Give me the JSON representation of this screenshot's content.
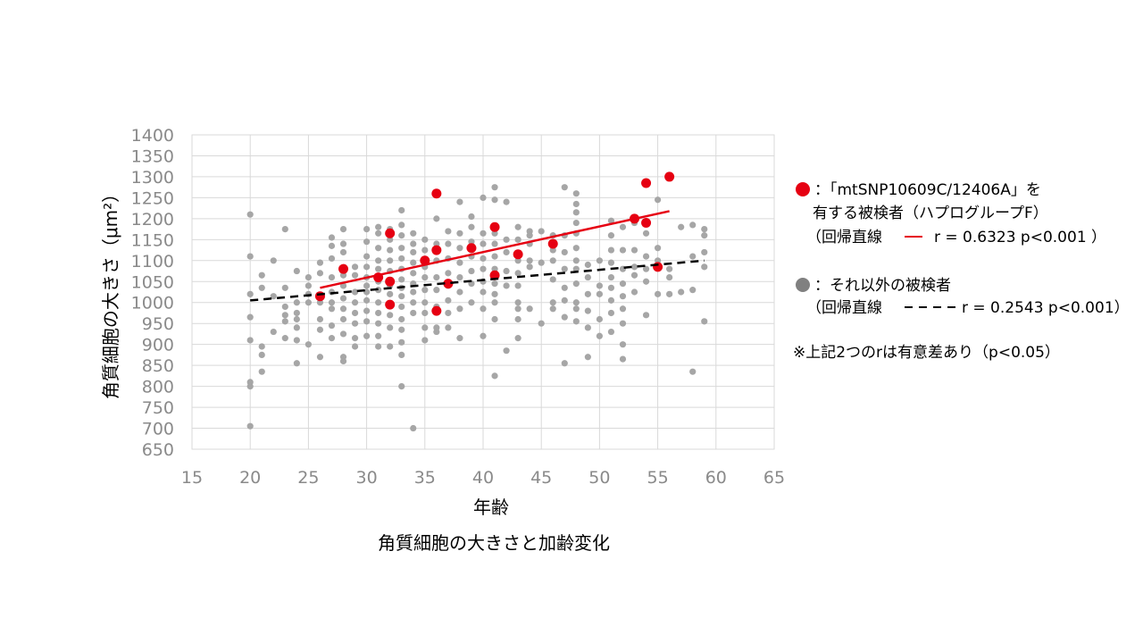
{
  "chart_data": {
    "type": "scatter",
    "title": "",
    "caption": "角質細胞の大きさと加齢変化",
    "xlabel": "年齢",
    "ylabel": "角質細胞の大きさ（μm²）",
    "xlim": [
      15,
      65
    ],
    "ylim": [
      650,
      1400
    ],
    "x_ticks": [
      15,
      20,
      25,
      30,
      35,
      40,
      45,
      50,
      55,
      60,
      65
    ],
    "y_ticks": [
      650,
      700,
      750,
      800,
      850,
      900,
      950,
      1000,
      1050,
      1100,
      1150,
      1200,
      1250,
      1300,
      1350,
      1400
    ],
    "grid": true,
    "legend_position": "right",
    "colors": {
      "red": "#e60012",
      "gray": "#a6a6a6",
      "trend_gray": "#000000",
      "tick_text": "#8a8a8a"
    },
    "series": [
      {
        "name": "「mtSNP10609C/12406A」を有する被検者（ハプログループF）",
        "color": "#e60012",
        "points": [
          [
            26,
            1015
          ],
          [
            28,
            1080
          ],
          [
            31,
            1060
          ],
          [
            32,
            1165
          ],
          [
            32,
            1050
          ],
          [
            32,
            995
          ],
          [
            35,
            1100
          ],
          [
            36,
            1260
          ],
          [
            36,
            1125
          ],
          [
            36,
            980
          ],
          [
            37,
            1045
          ],
          [
            39,
            1130
          ],
          [
            41,
            1180
          ],
          [
            41,
            1065
          ],
          [
            43,
            1115
          ],
          [
            46,
            1140
          ],
          [
            53,
            1200
          ],
          [
            54,
            1285
          ],
          [
            54,
            1190
          ],
          [
            55,
            1085
          ],
          [
            56,
            1300
          ]
        ],
        "regression": {
          "x": [
            26,
            56
          ],
          "y": [
            1035,
            1218
          ],
          "style": "solid",
          "r": 0.6323,
          "p": "<0.001"
        }
      },
      {
        "name": "それ以外の被検者",
        "color": "#a6a6a6",
        "points": [
          [
            20,
            1210
          ],
          [
            20,
            1110
          ],
          [
            20,
            1020
          ],
          [
            20,
            965
          ],
          [
            20,
            910
          ],
          [
            20,
            810
          ],
          [
            20,
            800
          ],
          [
            20,
            705
          ],
          [
            21,
            1065
          ],
          [
            21,
            1035
          ],
          [
            21,
            895
          ],
          [
            21,
            875
          ],
          [
            21,
            835
          ],
          [
            22,
            1100
          ],
          [
            22,
            1015
          ],
          [
            22,
            930
          ],
          [
            23,
            1175
          ],
          [
            23,
            1035
          ],
          [
            23,
            990
          ],
          [
            23,
            970
          ],
          [
            23,
            955
          ],
          [
            23,
            915
          ],
          [
            24,
            1075
          ],
          [
            24,
            1000
          ],
          [
            24,
            975
          ],
          [
            24,
            960
          ],
          [
            24,
            940
          ],
          [
            24,
            910
          ],
          [
            24,
            855
          ],
          [
            25,
            1060
          ],
          [
            25,
            1040
          ],
          [
            25,
            1020
          ],
          [
            25,
            1000
          ],
          [
            25,
            900
          ],
          [
            26,
            1095
          ],
          [
            26,
            1070
          ],
          [
            26,
            1000
          ],
          [
            26,
            960
          ],
          [
            26,
            935
          ],
          [
            26,
            870
          ],
          [
            27,
            1155
          ],
          [
            27,
            1135
          ],
          [
            27,
            1105
          ],
          [
            27,
            1060
          ],
          [
            27,
            1025
          ],
          [
            27,
            1000
          ],
          [
            27,
            985
          ],
          [
            27,
            945
          ],
          [
            27,
            915
          ],
          [
            28,
            1175
          ],
          [
            28,
            1140
          ],
          [
            28,
            1120
          ],
          [
            28,
            1065
          ],
          [
            28,
            1040
          ],
          [
            28,
            1010
          ],
          [
            28,
            985
          ],
          [
            28,
            960
          ],
          [
            28,
            925
          ],
          [
            28,
            870
          ],
          [
            28,
            860
          ],
          [
            29,
            1085
          ],
          [
            29,
            1065
          ],
          [
            29,
            1025
          ],
          [
            29,
            1000
          ],
          [
            29,
            975
          ],
          [
            29,
            950
          ],
          [
            29,
            915
          ],
          [
            29,
            895
          ],
          [
            30,
            1175
          ],
          [
            30,
            1145
          ],
          [
            30,
            1110
          ],
          [
            30,
            1085
          ],
          [
            30,
            1060
          ],
          [
            30,
            1040
          ],
          [
            30,
            1025
          ],
          [
            30,
            1005
          ],
          [
            30,
            980
          ],
          [
            30,
            955
          ],
          [
            30,
            920
          ],
          [
            31,
            1180
          ],
          [
            31,
            1165
          ],
          [
            31,
            1130
          ],
          [
            31,
            1100
          ],
          [
            31,
            1080
          ],
          [
            31,
            1050
          ],
          [
            31,
            1030
          ],
          [
            31,
            1000
          ],
          [
            31,
            975
          ],
          [
            31,
            950
          ],
          [
            31,
            920
          ],
          [
            31,
            895
          ],
          [
            32,
            1175
          ],
          [
            32,
            1150
          ],
          [
            32,
            1125
          ],
          [
            32,
            1100
          ],
          [
            32,
            1075
          ],
          [
            32,
            1040
          ],
          [
            32,
            1020
          ],
          [
            32,
            970
          ],
          [
            32,
            940
          ],
          [
            32,
            895
          ],
          [
            33,
            1220
          ],
          [
            33,
            1185
          ],
          [
            33,
            1160
          ],
          [
            33,
            1130
          ],
          [
            33,
            1105
          ],
          [
            33,
            1080
          ],
          [
            33,
            1055
          ],
          [
            33,
            1035
          ],
          [
            33,
            1015
          ],
          [
            33,
            990
          ],
          [
            33,
            960
          ],
          [
            33,
            935
          ],
          [
            33,
            905
          ],
          [
            33,
            875
          ],
          [
            33,
            800
          ],
          [
            34,
            1165
          ],
          [
            34,
            1140
          ],
          [
            34,
            1120
          ],
          [
            34,
            1095
          ],
          [
            34,
            1070
          ],
          [
            34,
            1045
          ],
          [
            34,
            1025
          ],
          [
            34,
            1000
          ],
          [
            34,
            975
          ],
          [
            34,
            700
          ],
          [
            35,
            1150
          ],
          [
            35,
            1125
          ],
          [
            35,
            1085
          ],
          [
            35,
            1060
          ],
          [
            35,
            1030
          ],
          [
            35,
            1000
          ],
          [
            35,
            975
          ],
          [
            35,
            940
          ],
          [
            35,
            910
          ],
          [
            36,
            1200
          ],
          [
            36,
            1140
          ],
          [
            36,
            1100
          ],
          [
            36,
            1060
          ],
          [
            36,
            1030
          ],
          [
            36,
            990
          ],
          [
            36,
            940
          ],
          [
            36,
            930
          ],
          [
            37,
            1170
          ],
          [
            37,
            1140
          ],
          [
            37,
            1105
          ],
          [
            37,
            1070
          ],
          [
            37,
            1040
          ],
          [
            37,
            1005
          ],
          [
            37,
            975
          ],
          [
            37,
            940
          ],
          [
            38,
            1240
          ],
          [
            38,
            1165
          ],
          [
            38,
            1130
          ],
          [
            38,
            1095
          ],
          [
            38,
            1060
          ],
          [
            38,
            1025
          ],
          [
            38,
            985
          ],
          [
            38,
            915
          ],
          [
            39,
            1205
          ],
          [
            39,
            1180
          ],
          [
            39,
            1145
          ],
          [
            39,
            1110
          ],
          [
            39,
            1075
          ],
          [
            39,
            1045
          ],
          [
            39,
            1000
          ],
          [
            40,
            1250
          ],
          [
            40,
            1165
          ],
          [
            40,
            1140
          ],
          [
            40,
            1105
          ],
          [
            40,
            1080
          ],
          [
            40,
            1050
          ],
          [
            40,
            1025
          ],
          [
            40,
            985
          ],
          [
            40,
            920
          ],
          [
            41,
            1275
          ],
          [
            41,
            1245
          ],
          [
            41,
            1165
          ],
          [
            41,
            1140
          ],
          [
            41,
            1110
          ],
          [
            41,
            1080
          ],
          [
            41,
            1045
          ],
          [
            41,
            1020
          ],
          [
            41,
            1000
          ],
          [
            41,
            960
          ],
          [
            41,
            825
          ],
          [
            42,
            1240
          ],
          [
            42,
            1150
          ],
          [
            42,
            1120
          ],
          [
            42,
            1075
          ],
          [
            42,
            1040
          ],
          [
            42,
            885
          ],
          [
            43,
            1180
          ],
          [
            43,
            1150
          ],
          [
            43,
            1100
          ],
          [
            43,
            1070
          ],
          [
            43,
            1040
          ],
          [
            43,
            1000
          ],
          [
            43,
            985
          ],
          [
            43,
            960
          ],
          [
            43,
            915
          ],
          [
            44,
            1170
          ],
          [
            44,
            1160
          ],
          [
            44,
            1140
          ],
          [
            44,
            1100
          ],
          [
            44,
            1085
          ],
          [
            44,
            985
          ],
          [
            45,
            1170
          ],
          [
            45,
            1095
          ],
          [
            45,
            950
          ],
          [
            46,
            1160
          ],
          [
            46,
            1125
          ],
          [
            46,
            1100
          ],
          [
            46,
            1055
          ],
          [
            46,
            1000
          ],
          [
            46,
            985
          ],
          [
            47,
            1275
          ],
          [
            47,
            1160
          ],
          [
            47,
            1120
          ],
          [
            47,
            1080
          ],
          [
            47,
            1035
          ],
          [
            47,
            1005
          ],
          [
            47,
            965
          ],
          [
            47,
            855
          ],
          [
            48,
            1260
          ],
          [
            48,
            1235
          ],
          [
            48,
            1215
          ],
          [
            48,
            1190
          ],
          [
            48,
            1165
          ],
          [
            48,
            1130
          ],
          [
            48,
            1100
          ],
          [
            48,
            1080
          ],
          [
            48,
            1045
          ],
          [
            48,
            1000
          ],
          [
            48,
            985
          ],
          [
            48,
            955
          ],
          [
            49,
            1090
          ],
          [
            49,
            1060
          ],
          [
            49,
            1020
          ],
          [
            49,
            980
          ],
          [
            49,
            940
          ],
          [
            49,
            870
          ],
          [
            50,
            1100
          ],
          [
            50,
            1040
          ],
          [
            50,
            1020
          ],
          [
            50,
            960
          ],
          [
            50,
            920
          ],
          [
            51,
            1195
          ],
          [
            51,
            1160
          ],
          [
            51,
            1125
          ],
          [
            51,
            1095
          ],
          [
            51,
            1060
          ],
          [
            51,
            1035
          ],
          [
            51,
            1005
          ],
          [
            51,
            975
          ],
          [
            51,
            930
          ],
          [
            52,
            1180
          ],
          [
            52,
            1125
          ],
          [
            52,
            1080
          ],
          [
            52,
            1045
          ],
          [
            52,
            1015
          ],
          [
            52,
            985
          ],
          [
            52,
            950
          ],
          [
            52,
            900
          ],
          [
            52,
            865
          ],
          [
            53,
            1190
          ],
          [
            53,
            1125
          ],
          [
            53,
            1085
          ],
          [
            53,
            1065
          ],
          [
            53,
            1025
          ],
          [
            54,
            1165
          ],
          [
            54,
            1110
          ],
          [
            54,
            1080
          ],
          [
            54,
            1050
          ],
          [
            54,
            970
          ],
          [
            55,
            1245
          ],
          [
            55,
            1130
          ],
          [
            55,
            1100
          ],
          [
            55,
            1020
          ],
          [
            56,
            1080
          ],
          [
            56,
            1060
          ],
          [
            56,
            1020
          ],
          [
            57,
            1180
          ],
          [
            57,
            1025
          ],
          [
            58,
            1185
          ],
          [
            58,
            1110
          ],
          [
            58,
            1030
          ],
          [
            58,
            835
          ],
          [
            59,
            1175
          ],
          [
            59,
            1160
          ],
          [
            59,
            1120
          ],
          [
            59,
            1085
          ],
          [
            59,
            955
          ]
        ],
        "regression": {
          "x": [
            20,
            59
          ],
          "y": [
            1005,
            1100
          ],
          "style": "dashed",
          "r": 0.2543,
          "p": "<0.001"
        }
      }
    ],
    "legend": {
      "red_line1": "：「mtSNP10609C/12406A」を",
      "red_line2": "有する被検者（ハプログループF）",
      "red_line3_a": "（回帰直線",
      "red_line3_b": "r = 0.6323   p<0.001 ）",
      "gray_line1": "：それ以外の被検者",
      "gray_line2_a": "（回帰直線",
      "gray_line2_b": "r = 0.2543   p<0.001）",
      "note": "※上記2つのrは有意差あり（p<0.05）"
    }
  }
}
